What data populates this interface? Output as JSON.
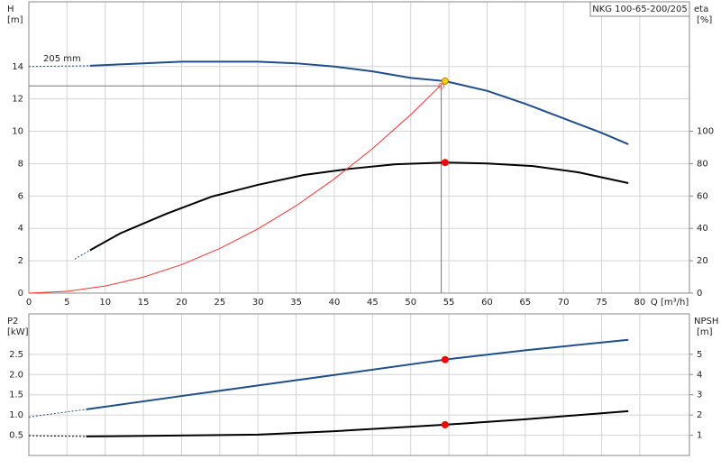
{
  "chart_data": [
    {
      "type": "line",
      "title": "NKG 100-65-200/205",
      "annotation": "205 mm",
      "x_label": "Q [m³/h]",
      "y_label": "H",
      "y_unit": "[m]",
      "y2_label": "eta",
      "y2_unit": "[%]",
      "xlim": [
        0,
        86.5
      ],
      "xticks": [
        0,
        5,
        10,
        15,
        20,
        25,
        30,
        35,
        40,
        45,
        50,
        55,
        60,
        65,
        70,
        75,
        80
      ],
      "ylim": [
        0,
        18
      ],
      "yticks": [
        0,
        2,
        4,
        6,
        8,
        10,
        12,
        14
      ],
      "y2lim": [
        0,
        180
      ],
      "y2ticks": [
        0,
        20,
        40,
        60,
        80,
        100
      ],
      "grid": true,
      "show_x_labels": true,
      "series": [
        {
          "color": "#1f4e8c",
          "style": "dotted",
          "axis": "y",
          "x": [
            0,
            8
          ],
          "values": [
            14.0,
            14.05
          ]
        },
        {
          "color": "#1f4e8c",
          "style": "solid",
          "axis": "y",
          "x": [
            8,
            15,
            20,
            25,
            30,
            35,
            40,
            45,
            50,
            54.5,
            60,
            65,
            70,
            75,
            78.5
          ],
          "values": [
            14.05,
            14.2,
            14.3,
            14.3,
            14.3,
            14.2,
            14.0,
            13.7,
            13.3,
            13.1,
            12.5,
            11.7,
            10.8,
            9.9,
            9.2
          ]
        },
        {
          "color": "#1f4e8c",
          "style": "dotted",
          "axis": "y2",
          "x": [
            6,
            8
          ],
          "values": [
            21,
            26.5
          ]
        },
        {
          "color": "#000000",
          "style": "solid",
          "axis": "y2",
          "x": [
            8,
            12,
            18,
            24,
            30,
            36,
            42,
            48,
            54.5,
            60,
            66,
            72,
            78.5
          ],
          "values": [
            26.5,
            37,
            49,
            59.7,
            66.9,
            73,
            76.8,
            79.6,
            80.7,
            80.1,
            78.5,
            74.6,
            68
          ]
        },
        {
          "color": "#ff3030",
          "style": "thin",
          "axis": "y",
          "x": [
            0,
            5,
            10,
            15,
            20,
            25,
            30,
            35,
            40,
            45,
            50,
            54.5
          ],
          "values": [
            0,
            0.11,
            0.44,
            0.99,
            1.76,
            2.76,
            3.97,
            5.4,
            7.06,
            8.93,
            11.03,
            13.1
          ]
        }
      ],
      "guide": {
        "x": 54,
        "y": 12.8
      },
      "markers": [
        {
          "x": 54.5,
          "y": 13.1,
          "axis": "y",
          "color": "#ffd000"
        },
        {
          "x": 54.5,
          "y": 80.7,
          "axis": "y2",
          "color": "#ff0000"
        }
      ]
    },
    {
      "type": "line",
      "y_label": "P2",
      "y_unit": "[kW]",
      "y2_label": "NPSH",
      "y2_unit": "[m]",
      "xlim": [
        0,
        86.5
      ],
      "xticks": [
        0,
        5,
        10,
        15,
        20,
        25,
        30,
        35,
        40,
        45,
        50,
        55,
        60,
        65,
        70,
        75,
        80
      ],
      "ylim": [
        0,
        3.5
      ],
      "yticks": [
        0.5,
        {
          "value": 1,
          "label": "1.0"
        },
        1.5,
        {
          "value": 2,
          "label": "2.0"
        },
        2.5
      ],
      "y2lim": [
        0,
        7
      ],
      "y2ticks": [
        1,
        2,
        3,
        4,
        5
      ],
      "grid": true,
      "show_x_labels": false,
      "series": [
        {
          "color": "#1f4e8c",
          "style": "dotted",
          "axis": "y",
          "x": [
            0,
            7.5
          ],
          "values": [
            0.95,
            1.14
          ]
        },
        {
          "color": "#1f4e8c",
          "style": "solid",
          "axis": "y",
          "x": [
            7.5,
            20,
            30,
            40,
            54.5,
            65,
            78.5
          ],
          "values": [
            1.14,
            1.47,
            1.73,
            1.99,
            2.37,
            2.6,
            2.86
          ]
        },
        {
          "color": "#000000",
          "style": "dotted",
          "axis": "y2",
          "x": [
            0,
            7.5
          ],
          "values": [
            0.98,
            0.94
          ]
        },
        {
          "color": "#000000",
          "style": "solid",
          "axis": "y2",
          "x": [
            7.5,
            30,
            40,
            54.5,
            65,
            78.5
          ],
          "values": [
            0.94,
            1.03,
            1.2,
            1.52,
            1.79,
            2.19
          ]
        }
      ],
      "markers": [
        {
          "x": 54.5,
          "y": 2.37,
          "axis": "y",
          "color": "#ff0000"
        },
        {
          "x": 54.5,
          "y": 1.52,
          "axis": "y2",
          "color": "#ff0000"
        }
      ]
    }
  ]
}
